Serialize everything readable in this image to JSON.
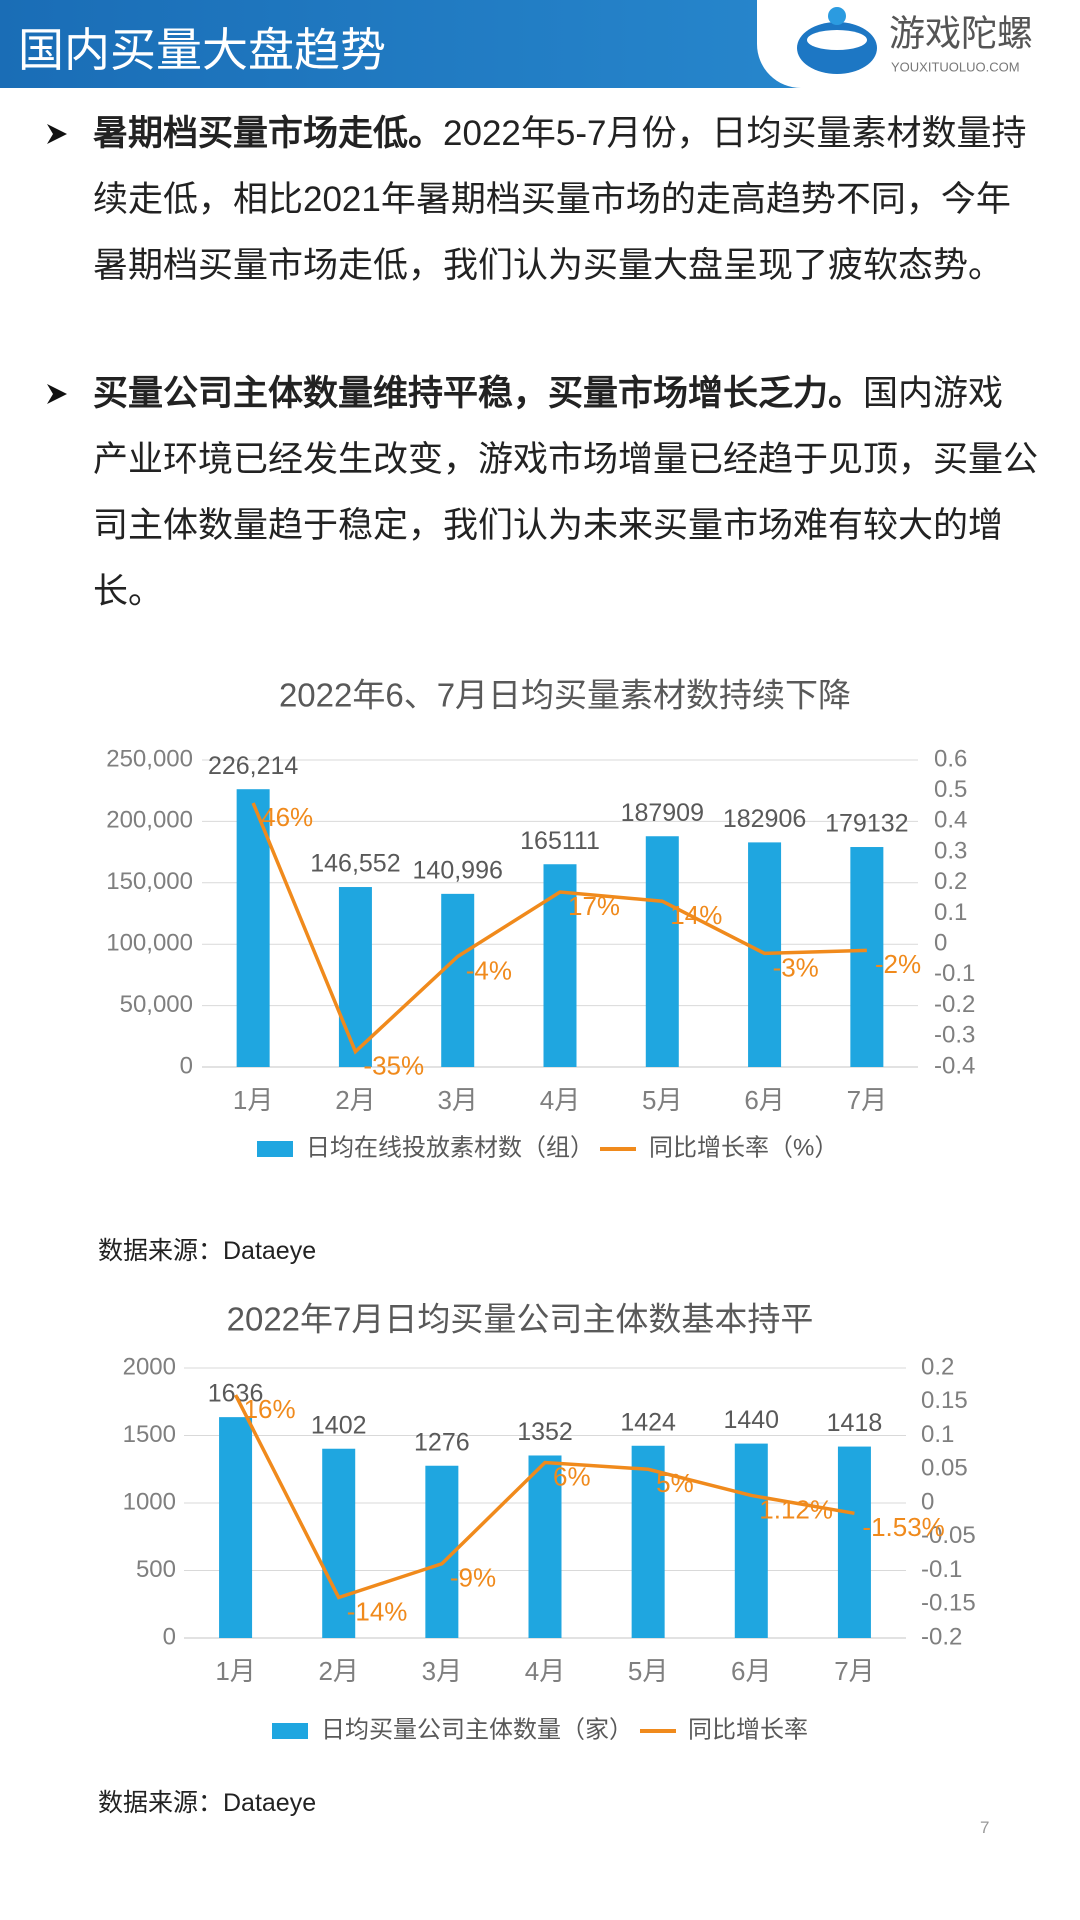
{
  "header": {
    "title": "国内买量大盘趋势",
    "logo": "游戏陀螺",
    "logo_url": "YOUXITUOLUO.COM"
  },
  "bullets": [
    {
      "lead": "暑期档买量市场走低。",
      "text": "2022年5-7月份，日均买量素材数量持续走低，相比2021年暑期档买量市场的走高趋势不同，今年暑期档买量市场走低，我们认为买量大盘呈现了疲软态势。"
    },
    {
      "lead": "买量公司主体数量维持平稳，买量市场增长乏力。",
      "text": "国内游戏产业环境已经发生改变，游戏市场增量已经趋于见顶，买量公司主体数量趋于稳定，我们认为未来买量市场难有较大的增长。"
    }
  ],
  "chart_data": [
    {
      "type": "bar",
      "title": "2022年6、7月日均买量素材数持续下降",
      "categories": [
        "1月",
        "2月",
        "3月",
        "4月",
        "5月",
        "6月",
        "7月"
      ],
      "series": [
        {
          "name": "日均在线投放素材数（组）",
          "type": "bar",
          "color": "#1fa6e0",
          "values": [
            226214,
            146552,
            140996,
            165111,
            187909,
            182906,
            179132
          ],
          "value_labels": [
            "226,214",
            "146,552",
            "140,996",
            "165111",
            "187909",
            "182906",
            "179132"
          ]
        },
        {
          "name": "同比增长率（%）",
          "type": "line",
          "axis": "y2",
          "color": "#f08a1c",
          "values": [
            0.46,
            -0.35,
            -0.04,
            0.17,
            0.14,
            -0.03,
            -0.02
          ],
          "value_labels": [
            "46%",
            "-35%",
            "-4%",
            "17%",
            "14%",
            "-3%",
            "-2%"
          ]
        }
      ],
      "ylim": [
        0,
        250000
      ],
      "yticks": [
        0,
        {
          "value": 50000,
          "label": "50,000"
        },
        {
          "value": 100000,
          "label": "100,000"
        },
        {
          "value": 150000,
          "label": "150,000"
        },
        {
          "value": 200000,
          "label": "200,000"
        },
        {
          "value": 250000,
          "label": "250,000"
        }
      ],
      "y2lim": [
        -0.4,
        0.6
      ],
      "y2ticks": [
        -0.4,
        -0.3,
        -0.2,
        -0.1,
        0,
        0.1,
        0.2,
        0.3,
        0.4,
        0.5,
        0.6
      ],
      "grid": true,
      "legend": "bottom"
    },
    {
      "type": "bar",
      "title": "2022年7月日均买量公司主体数基本持平",
      "categories": [
        "1月",
        "2月",
        "3月",
        "4月",
        "5月",
        "6月",
        "7月"
      ],
      "series": [
        {
          "name": "日均买量公司主体数量（家）",
          "type": "bar",
          "color": "#1fa6e0",
          "values": [
            1636,
            1402,
            1276,
            1352,
            1424,
            1440,
            1418
          ]
        },
        {
          "name": "同比增长率",
          "type": "line",
          "axis": "y2",
          "color": "#f08a1c",
          "values": [
            0.16,
            -0.14,
            -0.09,
            0.06,
            0.05,
            0.0112,
            -0.0153
          ],
          "value_labels": [
            "16%",
            "-14%",
            "-9%",
            "6%",
            "5%",
            "1.12%",
            "-1.53%"
          ]
        }
      ],
      "ylim": [
        0,
        2000
      ],
      "yticks": [
        0,
        500,
        1000,
        1500,
        2000
      ],
      "y2lim": [
        -0.2,
        0.2
      ],
      "y2ticks": [
        -0.2,
        -0.15,
        -0.1,
        -0.05,
        0,
        0.05,
        0.1,
        0.15,
        0.2
      ],
      "grid": true,
      "legend": "bottom"
    }
  ],
  "sources": [
    "数据来源：Dataeye",
    "数据来源：Dataeye"
  ],
  "page_number": "7"
}
